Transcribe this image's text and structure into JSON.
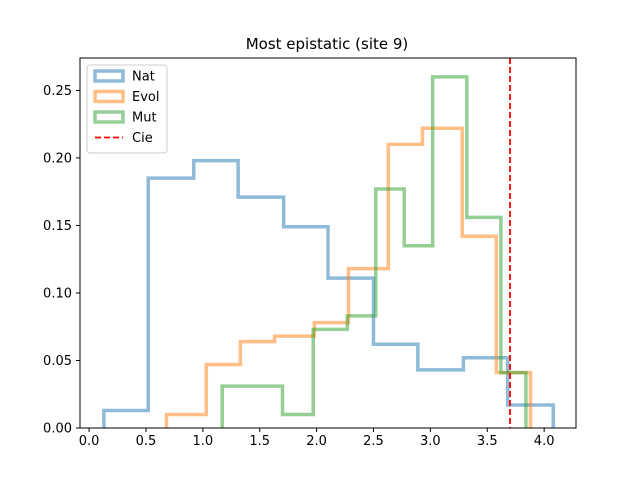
{
  "chart_data": {
    "type": "histogram-step",
    "title": "Most epistatic (site 9)",
    "xlabel": "",
    "ylabel": "",
    "xlim": [
      -0.08,
      4.28
    ],
    "ylim": [
      0,
      0.274
    ],
    "xticks": [
      "0.0",
      "0.5",
      "1.0",
      "1.5",
      "2.0",
      "2.5",
      "3.0",
      "3.5",
      "4.0"
    ],
    "yticks": [
      "0.00",
      "0.05",
      "0.10",
      "0.15",
      "0.20",
      "0.25"
    ],
    "xtick_values": [
      0,
      0.5,
      1.0,
      1.5,
      2.0,
      2.5,
      3.0,
      3.5,
      4.0
    ],
    "ytick_values": [
      0,
      0.05,
      0.1,
      0.15,
      0.2,
      0.25
    ],
    "grid": false,
    "legend_position": "upper-left",
    "series": [
      {
        "name": "Nat",
        "color": "#1f77b4",
        "edges": [
          0.13,
          0.52,
          0.92,
          1.31,
          1.71,
          2.1,
          2.5,
          2.89,
          3.29,
          3.68,
          4.08
        ],
        "values": [
          0.013,
          0.185,
          0.198,
          0.171,
          0.149,
          0.111,
          0.062,
          0.043,
          0.052,
          0.017
        ]
      },
      {
        "name": "Evol",
        "color": "#ff7f0e",
        "edges": [
          0.68,
          1.03,
          1.33,
          1.63,
          1.98,
          2.28,
          2.63,
          2.93,
          3.28,
          3.58,
          3.88
        ],
        "values": [
          0.01,
          0.047,
          0.064,
          0.068,
          0.078,
          0.118,
          0.21,
          0.222,
          0.142,
          0.041
        ]
      },
      {
        "name": "Mut",
        "color": "#2ca02c",
        "edges": [
          1.17,
          1.7,
          1.97,
          2.27,
          2.52,
          2.77,
          3.02,
          3.32,
          3.62,
          3.84
        ],
        "values": [
          0.031,
          0.01,
          0.073,
          0.083,
          0.177,
          0.135,
          0.26,
          0.156,
          0.041
        ]
      }
    ],
    "reference_line": {
      "name": "Cie",
      "color": "#ff0000",
      "x": 3.7,
      "style": "dashed"
    }
  }
}
